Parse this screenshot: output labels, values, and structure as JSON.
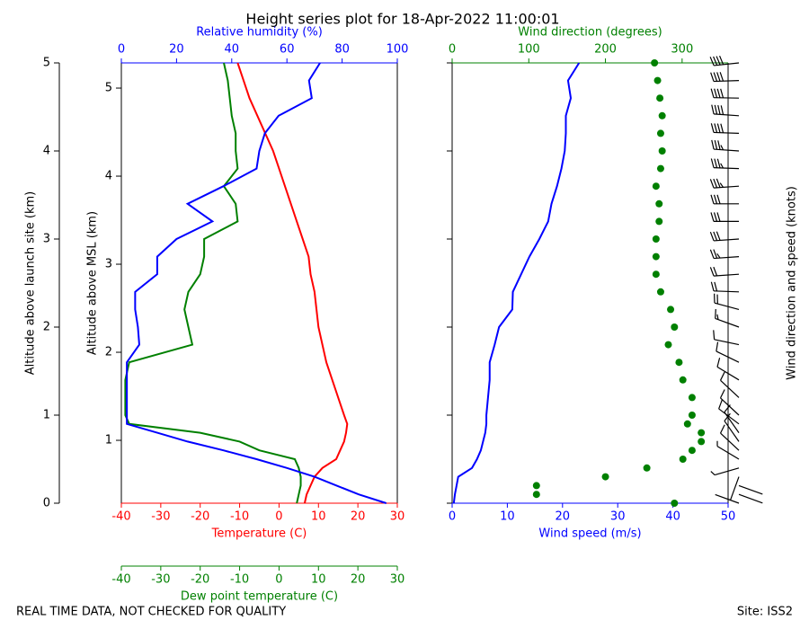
{
  "chart_data": {
    "type": "line",
    "title": "Height series plot for 18-Apr-2022 11:00:01",
    "annotations": [
      "REAL TIME DATA, NOT CHECKED FOR QUALITY",
      "Site: ISS2"
    ],
    "ylabel": "Altitude above launch site (km)",
    "ylim": [
      0,
      5
    ],
    "yticks": [
      0,
      1,
      2,
      3,
      4,
      5
    ],
    "y2label": "Altitude above MSL (km)",
    "y2lim": [
      0.286,
      5.286
    ],
    "y2ticks": [
      1,
      2,
      3,
      4,
      5
    ],
    "altitude": [
      0,
      0.1,
      0.2,
      0.3,
      0.4,
      0.5,
      0.6,
      0.7,
      0.8,
      0.9,
      1.0,
      1.2,
      1.4,
      1.6,
      1.8,
      2.0,
      2.2,
      2.4,
      2.6,
      2.8,
      3.0,
      3.2,
      3.4,
      3.6,
      3.8,
      4.0,
      4.2,
      4.4,
      4.6,
      4.8,
      5.0
    ],
    "panels": [
      {
        "axes": [
          {
            "label": "Temperature (C)",
            "lim": [
              -40,
              30
            ],
            "ticks": [
              -40,
              -30,
              -20,
              -10,
              0,
              10,
              20,
              30
            ],
            "color": "#ff0000",
            "side": "bottom"
          },
          {
            "label": "Dew point temperature (C)",
            "lim": [
              -40,
              30
            ],
            "ticks": [
              -40,
              -30,
              -20,
              -10,
              0,
              10,
              20,
              30
            ],
            "color": "#008000",
            "side": "bottom"
          },
          {
            "label": "Relative humidity (%)",
            "lim": [
              0,
              100
            ],
            "ticks": [
              0,
              20,
              40,
              60,
              80,
              100
            ],
            "color": "#0000ff",
            "side": "top"
          }
        ],
        "series": [
          {
            "axis": 0,
            "color": "#ff0000",
            "style": "line",
            "values": [
              6.5,
              7,
              8,
              9,
              11,
              14.5,
              15.5,
              16.5,
              17,
              17.3,
              16.5,
              15,
              13.5,
              12,
              11,
              10,
              9.5,
              9,
              8,
              7.5,
              6,
              4.5,
              3,
              1.5,
              0,
              -1.5,
              -3.5,
              -5.5,
              -7.5,
              -9,
              -10.5
            ]
          },
          {
            "axis": 1,
            "color": "#008000",
            "style": "line",
            "values": [
              4.5,
              5,
              5.5,
              5.5,
              5,
              4,
              -5,
              -10,
              -20,
              -38,
              -39,
              -39,
              -39,
              -38,
              -22,
              -23,
              -24,
              -23,
              -20,
              -19,
              -19,
              -10.5,
              -11,
              -14,
              -10.5,
              -11,
              -11,
              -12,
              -12.5,
              -13,
              -14
            ]
          },
          {
            "axis": 2,
            "color": "#0000ff",
            "style": "line",
            "values": [
              96,
              86,
              78,
              70,
              60,
              49,
              37,
              24,
              13,
              2,
              2,
              2,
              2,
              2,
              6.5,
              6,
              5,
              5,
              13,
              13,
              20,
              33,
              24,
              37,
              49,
              50,
              52,
              57,
              69,
              68,
              72
            ]
          }
        ]
      },
      {
        "axes": [
          {
            "label": "Wind speed (m/s)",
            "lim": [
              0,
              50
            ],
            "ticks": [
              0,
              10,
              20,
              30,
              40,
              50
            ],
            "color": "#0000ff",
            "side": "bottom"
          },
          {
            "label": "Wind direction (degrees)",
            "lim": [
              0,
              360
            ],
            "ticks": [
              0,
              100,
              200,
              300
            ],
            "color": "#008000",
            "side": "top"
          }
        ],
        "series": [
          {
            "axis": 0,
            "color": "#0000ff",
            "style": "line",
            "values": [
              0.3,
              0.5,
              0.8,
              1.1,
              3.6,
              4.5,
              5.2,
              5.6,
              6,
              6.2,
              6.2,
              6.5,
              6.8,
              6.8,
              7.7,
              8.5,
              10.9,
              11,
              12.5,
              14,
              15.8,
              17.4,
              18,
              19,
              19.8,
              20.4,
              20.6,
              20.6,
              21.5,
              21,
              23
            ]
          },
          {
            "axis": 1,
            "color": "#008000",
            "style": "markers",
            "values": [
              290,
              110,
              110,
              200,
              254,
              301,
              313,
              325,
              325,
              307,
              313,
              313,
              301,
              296,
              282,
              290,
              285,
              272,
              266,
              266,
              266,
              270,
              270,
              266,
              272,
              274,
              272,
              274,
              271,
              268,
              264
            ]
          }
        ],
        "barb_label": "Wind direction and speed (knots)"
      }
    ]
  }
}
